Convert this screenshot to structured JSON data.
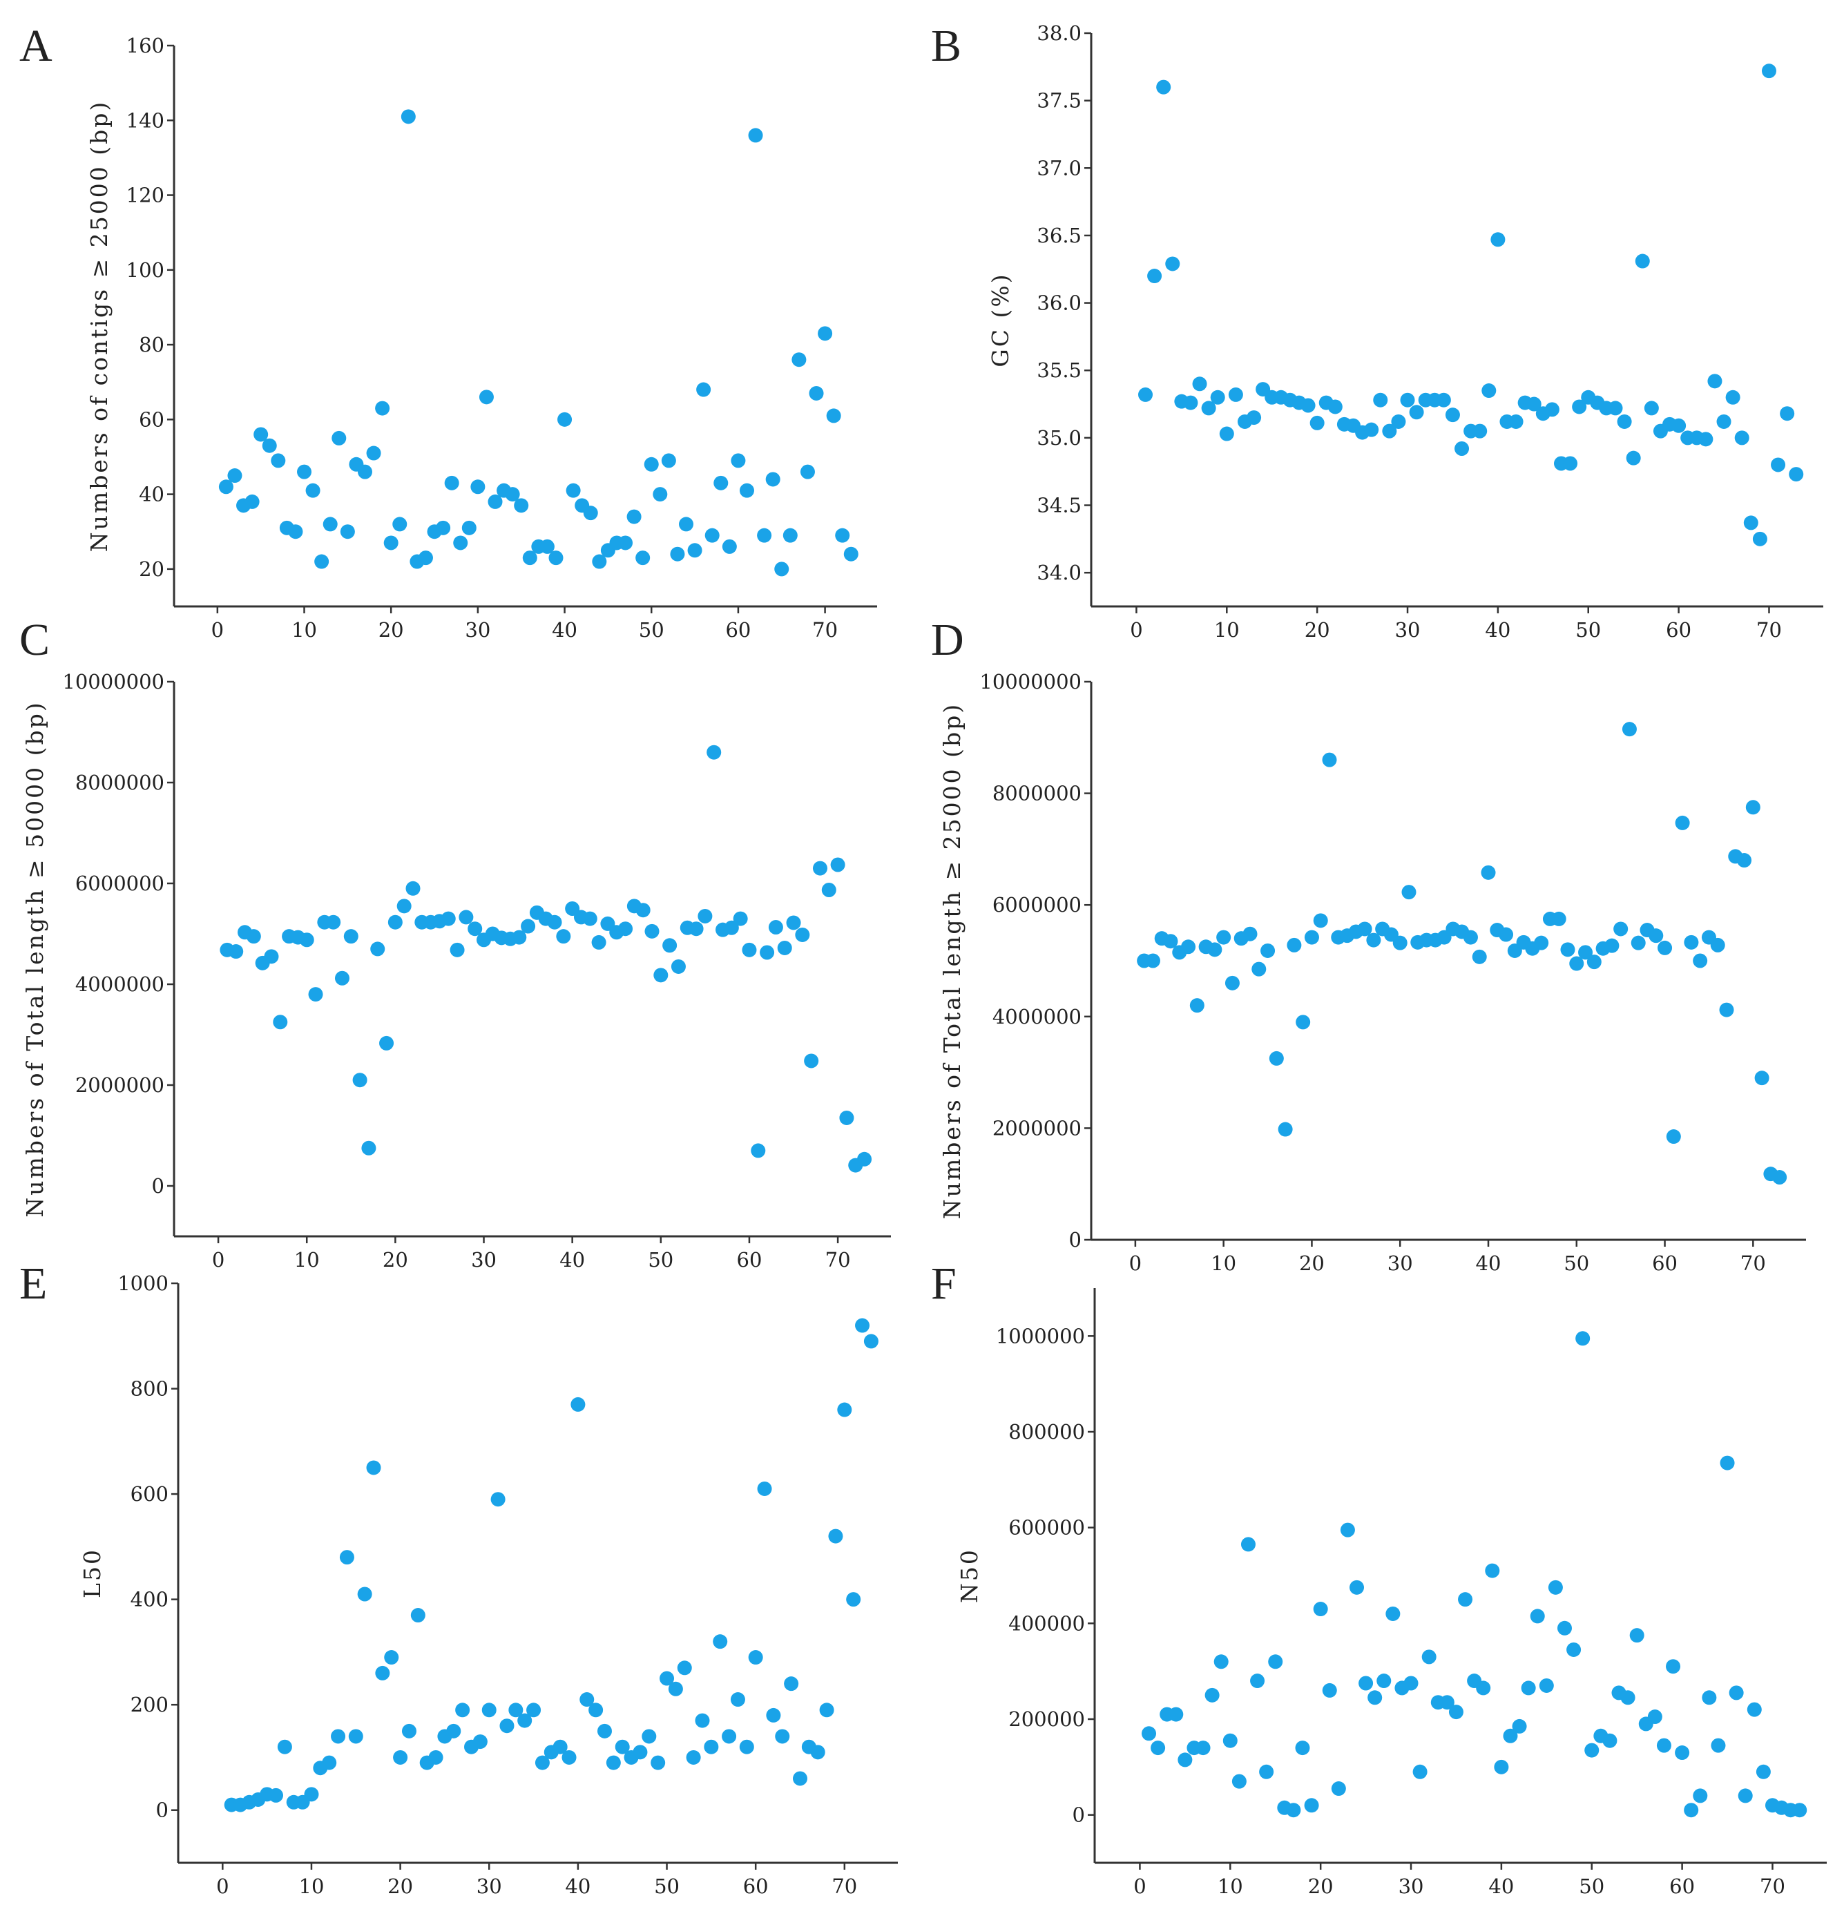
{
  "figure": {
    "marker_color": "#1aa3e8"
  },
  "chart_data": [
    {
      "panel": "A",
      "type": "scatter",
      "title": "",
      "xlabel": "",
      "ylabel": "Numbers of contigs ≥ 25000 (bp)",
      "xlim": [
        -5,
        76
      ],
      "ylim": [
        10,
        160
      ],
      "xticks": [
        0,
        10,
        20,
        30,
        40,
        50,
        60,
        70
      ],
      "xtick_labels": [
        "0",
        "10",
        "20",
        "30",
        "40",
        "50",
        "60",
        "70"
      ],
      "yticks": [
        20,
        40,
        60,
        80,
        100,
        120,
        140,
        160
      ],
      "ytick_labels": [
        "20",
        "40",
        "60",
        "80",
        "100",
        "120",
        "140",
        "160"
      ],
      "grid": false,
      "x": [
        1,
        2,
        3,
        4,
        5,
        6,
        7,
        8,
        9,
        10,
        11,
        12,
        13,
        14,
        15,
        16,
        17,
        18,
        19,
        20,
        21,
        22,
        23,
        24,
        25,
        26,
        27,
        28,
        29,
        30,
        31,
        32,
        33,
        34,
        35,
        36,
        37,
        38,
        39,
        40,
        41,
        42,
        43,
        44,
        45,
        46,
        47,
        48,
        49,
        50,
        51,
        52,
        53,
        54,
        55,
        56,
        57,
        58,
        59,
        60,
        61,
        62,
        63,
        64,
        65,
        66,
        67,
        68,
        69,
        70,
        71,
        72,
        73
      ],
      "y": [
        42,
        45,
        37,
        38,
        56,
        53,
        49,
        31,
        30,
        46,
        41,
        22,
        32,
        55,
        30,
        48,
        46,
        51,
        63,
        27,
        32,
        141,
        22,
        23,
        30,
        31,
        43,
        27,
        31,
        42,
        66,
        38,
        41,
        40,
        37,
        23,
        26,
        26,
        23,
        60,
        41,
        37,
        35,
        22,
        25,
        27,
        27,
        34,
        23,
        48,
        40,
        49,
        24,
        32,
        25,
        68,
        29,
        43,
        26,
        49,
        41,
        136,
        29,
        44,
        20,
        29,
        76,
        46,
        67,
        83,
        61,
        29,
        24
      ]
    },
    {
      "panel": "B",
      "type": "scatter",
      "title": "",
      "xlabel": "",
      "ylabel": "GC (%)",
      "xlim": [
        -5,
        76
      ],
      "ylim": [
        33.75,
        38.0
      ],
      "xticks": [
        0,
        10,
        20,
        30,
        40,
        50,
        60,
        70
      ],
      "xtick_labels": [
        "0",
        "10",
        "20",
        "30",
        "40",
        "50",
        "60",
        "70"
      ],
      "yticks": [
        34.0,
        34.5,
        35.0,
        35.5,
        36.0,
        36.5,
        37.0,
        37.5,
        38.0
      ],
      "ytick_labels": [
        "34.0",
        "34.5",
        "35.0",
        "35.5",
        "36.0",
        "36.5",
        "37.0",
        "37.5",
        "38.0"
      ],
      "grid": false,
      "x": [
        1,
        2,
        3,
        4,
        5,
        6,
        7,
        8,
        9,
        10,
        11,
        12,
        13,
        14,
        15,
        16,
        17,
        18,
        19,
        20,
        21,
        22,
        23,
        24,
        25,
        26,
        27,
        28,
        29,
        30,
        31,
        32,
        33,
        34,
        35,
        36,
        37,
        38,
        39,
        40,
        41,
        42,
        43,
        44,
        45,
        46,
        47,
        48,
        49,
        50,
        51,
        52,
        53,
        54,
        55,
        56,
        57,
        58,
        59,
        60,
        61,
        62,
        63,
        64,
        65,
        66,
        67,
        68,
        69,
        70,
        71,
        72,
        73
      ],
      "y": [
        35.32,
        36.2,
        37.6,
        36.29,
        35.27,
        35.26,
        35.4,
        35.22,
        35.3,
        35.03,
        35.32,
        35.12,
        35.15,
        35.36,
        35.3,
        35.3,
        35.28,
        35.26,
        35.24,
        35.11,
        35.26,
        35.23,
        35.1,
        35.09,
        35.04,
        35.06,
        35.28,
        35.05,
        35.12,
        35.28,
        35.19,
        35.28,
        35.28,
        35.28,
        35.17,
        34.92,
        35.05,
        35.05,
        35.35,
        36.47,
        35.12,
        35.12,
        35.26,
        35.25,
        35.18,
        35.21,
        34.81,
        34.81,
        35.23,
        35.3,
        35.26,
        35.22,
        35.22,
        35.12,
        34.85,
        36.31,
        35.22,
        35.05,
        35.1,
        35.09,
        35.0,
        35.0,
        34.99,
        35.42,
        35.12,
        35.3,
        35.0,
        34.37,
        34.25,
        37.72,
        34.8,
        35.18,
        34.73
      ]
    },
    {
      "panel": "C",
      "type": "scatter",
      "title": "",
      "xlabel": "",
      "ylabel": "Numbers of Total length ≥ 50000 (bp)",
      "xlim": [
        -5,
        76
      ],
      "ylim": [
        -1000000,
        10000000
      ],
      "xticks": [
        0,
        10,
        20,
        30,
        40,
        50,
        60,
        70
      ],
      "xtick_labels": [
        "0",
        "10",
        "20",
        "30",
        "40",
        "50",
        "60",
        "70"
      ],
      "yticks": [
        0,
        2000000,
        4000000,
        6000000,
        8000000,
        10000000
      ],
      "ytick_labels": [
        "0",
        "2000000",
        "4000000",
        "6000000",
        "8000000",
        "10000000"
      ],
      "grid": false,
      "x": [
        1,
        2,
        3,
        4,
        5,
        6,
        7,
        8,
        9,
        10,
        11,
        12,
        13,
        14,
        15,
        16,
        17,
        18,
        19,
        20,
        21,
        22,
        23,
        24,
        25,
        26,
        27,
        28,
        29,
        30,
        31,
        32,
        33,
        34,
        35,
        36,
        37,
        38,
        39,
        40,
        41,
        42,
        43,
        44,
        45,
        46,
        47,
        48,
        49,
        50,
        51,
        52,
        53,
        54,
        55,
        56,
        57,
        58,
        59,
        60,
        61,
        62,
        63,
        64,
        65,
        66,
        67,
        68,
        69,
        70,
        71,
        72,
        73
      ],
      "y": [
        4680000,
        4650000,
        5030000,
        4950000,
        4420000,
        4550000,
        3250000,
        4950000,
        4930000,
        4880000,
        3800000,
        5230000,
        5230000,
        4120000,
        4950000,
        2100000,
        750000,
        4700000,
        2830000,
        5230000,
        5550000,
        5900000,
        5230000,
        5230000,
        5250000,
        5300000,
        4680000,
        5330000,
        5100000,
        4880000,
        5000000,
        4920000,
        4900000,
        4930000,
        5150000,
        5420000,
        5300000,
        5230000,
        4950000,
        5500000,
        5330000,
        5300000,
        4830000,
        5200000,
        5030000,
        5100000,
        5550000,
        5470000,
        5050000,
        4180000,
        4770000,
        4350000,
        5120000,
        5100000,
        5350000,
        8600000,
        5080000,
        5120000,
        5300000,
        4680000,
        700000,
        4630000,
        5130000,
        4720000,
        5220000,
        4980000,
        2480000,
        6300000,
        5870000,
        6370000,
        1350000,
        410000,
        530000
      ]
    },
    {
      "panel": "D",
      "type": "scatter",
      "title": "",
      "xlabel": "",
      "ylabel": "Numbers of Total length ≥ 25000 (bp)",
      "xlim": [
        -5,
        76
      ],
      "ylim": [
        0,
        10000000
      ],
      "xticks": [
        0,
        10,
        20,
        30,
        40,
        50,
        60,
        70
      ],
      "xtick_labels": [
        "0",
        "10",
        "20",
        "30",
        "40",
        "50",
        "60",
        "70"
      ],
      "yticks": [
        0,
        2000000,
        4000000,
        6000000,
        8000000,
        10000000
      ],
      "ytick_labels": [
        "0",
        "2000000",
        "4000000",
        "6000000",
        "8000000",
        "10000000"
      ],
      "grid": false,
      "x": [
        1,
        2,
        3,
        4,
        5,
        6,
        7,
        8,
        9,
        10,
        11,
        12,
        13,
        14,
        15,
        16,
        17,
        18,
        19,
        20,
        21,
        22,
        23,
        24,
        25,
        26,
        27,
        28,
        29,
        30,
        31,
        32,
        33,
        34,
        35,
        36,
        37,
        38,
        39,
        40,
        41,
        42,
        43,
        44,
        45,
        46,
        47,
        48,
        49,
        50,
        51,
        52,
        53,
        54,
        55,
        56,
        57,
        58,
        59,
        60,
        61,
        62,
        63,
        64,
        65,
        66,
        67,
        68,
        69,
        70,
        71,
        72,
        73
      ],
      "y": [
        5000000,
        5000000,
        5400000,
        5350000,
        5150000,
        5250000,
        4200000,
        5250000,
        5200000,
        5420000,
        4600000,
        5400000,
        5480000,
        4850000,
        5180000,
        3250000,
        1980000,
        5280000,
        3900000,
        5420000,
        5720000,
        8600000,
        5420000,
        5450000,
        5520000,
        5570000,
        5370000,
        5570000,
        5470000,
        5320000,
        6230000,
        5330000,
        5370000,
        5370000,
        5420000,
        5570000,
        5520000,
        5420000,
        5070000,
        6580000,
        5550000,
        5470000,
        5180000,
        5330000,
        5220000,
        5320000,
        5750000,
        5750000,
        5200000,
        4950000,
        5150000,
        4980000,
        5220000,
        5270000,
        5570000,
        9150000,
        5320000,
        5550000,
        5450000,
        5230000,
        1850000,
        7470000,
        5330000,
        5000000,
        5420000,
        5280000,
        4120000,
        6870000,
        6800000,
        7750000,
        2900000,
        1180000,
        1120000
      ]
    },
    {
      "panel": "E",
      "type": "scatter",
      "title": "",
      "xlabel": "",
      "ylabel": "L50",
      "xlim": [
        -5,
        76
      ],
      "ylim": [
        -100,
        1000
      ],
      "xticks": [
        0,
        10,
        20,
        30,
        40,
        50,
        60,
        70
      ],
      "xtick_labels": [
        "0",
        "10",
        "20",
        "30",
        "40",
        "50",
        "60",
        "70"
      ],
      "yticks": [
        0,
        200,
        400,
        600,
        800,
        1000
      ],
      "ytick_labels": [
        "0",
        "200",
        "400",
        "600",
        "800",
        "1000"
      ],
      "grid": false,
      "x": [
        1,
        2,
        3,
        4,
        5,
        6,
        7,
        8,
        9,
        10,
        11,
        12,
        13,
        14,
        15,
        16,
        17,
        18,
        19,
        20,
        21,
        22,
        23,
        24,
        25,
        26,
        27,
        28,
        29,
        30,
        31,
        32,
        33,
        34,
        35,
        36,
        37,
        38,
        39,
        40,
        41,
        42,
        43,
        44,
        45,
        46,
        47,
        48,
        49,
        50,
        51,
        52,
        53,
        54,
        55,
        56,
        57,
        58,
        59,
        60,
        61,
        62,
        63,
        64,
        65,
        66,
        67,
        68,
        69,
        70,
        71,
        72,
        73
      ],
      "y": [
        10,
        10,
        15,
        20,
        30,
        28,
        120,
        15,
        15,
        30,
        80,
        90,
        140,
        480,
        140,
        410,
        650,
        260,
        290,
        100,
        150,
        370,
        90,
        100,
        140,
        150,
        190,
        120,
        130,
        190,
        590,
        160,
        190,
        170,
        190,
        90,
        110,
        120,
        100,
        770,
        210,
        190,
        150,
        90,
        120,
        100,
        110,
        140,
        90,
        250,
        230,
        270,
        100,
        170,
        120,
        320,
        140,
        210,
        120,
        290,
        610,
        180,
        140,
        240,
        60,
        120,
        110,
        190,
        520,
        760,
        400,
        920,
        890
      ]
    },
    {
      "panel": "F",
      "type": "scatter",
      "title": "",
      "xlabel": "",
      "ylabel": "N50",
      "xlim": [
        -5,
        76
      ],
      "ylim": [
        -100000,
        1100000
      ],
      "xticks": [
        0,
        10,
        20,
        30,
        40,
        50,
        60,
        70
      ],
      "xtick_labels": [
        "0",
        "10",
        "20",
        "30",
        "40",
        "50",
        "60",
        "70"
      ],
      "yticks": [
        0,
        200000,
        400000,
        600000,
        800000,
        1000000
      ],
      "ytick_labels": [
        "0",
        "200000",
        "400000",
        "600000",
        "800000",
        "1000000"
      ],
      "grid": false,
      "x": [
        1,
        2,
        3,
        4,
        5,
        6,
        7,
        8,
        9,
        10,
        11,
        12,
        13,
        14,
        15,
        16,
        17,
        18,
        19,
        20,
        21,
        22,
        23,
        24,
        25,
        26,
        27,
        28,
        29,
        30,
        31,
        32,
        33,
        34,
        35,
        36,
        37,
        38,
        39,
        40,
        41,
        42,
        43,
        44,
        45,
        46,
        47,
        48,
        49,
        50,
        51,
        52,
        53,
        54,
        55,
        56,
        57,
        58,
        59,
        60,
        61,
        62,
        63,
        64,
        65,
        66,
        67,
        68,
        69,
        70,
        71,
        72,
        73
      ],
      "y": [
        170000,
        140000,
        210000,
        210000,
        115000,
        140000,
        140000,
        250000,
        320000,
        155000,
        70000,
        565000,
        280000,
        90000,
        320000,
        15000,
        10000,
        140000,
        20000,
        430000,
        260000,
        55000,
        595000,
        475000,
        275000,
        245000,
        280000,
        420000,
        265000,
        275000,
        90000,
        330000,
        235000,
        235000,
        215000,
        450000,
        280000,
        265000,
        510000,
        100000,
        165000,
        185000,
        265000,
        415000,
        270000,
        475000,
        390000,
        345000,
        995000,
        135000,
        165000,
        155000,
        255000,
        245000,
        375000,
        190000,
        205000,
        145000,
        310000,
        130000,
        10000,
        40000,
        245000,
        145000,
        735000,
        255000,
        40000,
        220000,
        90000,
        20000,
        15000,
        10000,
        10000
      ]
    }
  ]
}
